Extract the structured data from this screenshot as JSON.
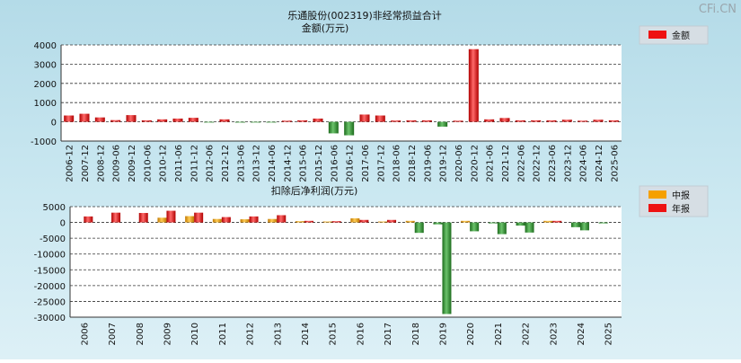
{
  "watermark": "CFi.CN",
  "chart_data": [
    {
      "type": "bar",
      "title": "乐通股份(002319)非经常损益合计",
      "subtitle": "金额(万元)",
      "legend": [
        {
          "name": "金额",
          "color": "#ee1111"
        }
      ],
      "legend_position": "top-right",
      "ylim": [
        -1000,
        4000
      ],
      "yticks": [
        -1000,
        0,
        1000,
        2000,
        3000,
        4000
      ],
      "grid": true,
      "categories": [
        "2006-12",
        "2007-12",
        "2008-12",
        "2009-06",
        "2009-12",
        "2010-06",
        "2010-12",
        "2011-06",
        "2011-12",
        "2012-06",
        "2012-12",
        "2013-06",
        "2013-12",
        "2014-06",
        "2014-12",
        "2015-06",
        "2015-12",
        "2016-06",
        "2016-12",
        "2017-06",
        "2017-12",
        "2018-06",
        "2018-12",
        "2019-06",
        "2019-12",
        "2020-06",
        "2020-12",
        "2021-06",
        "2021-12",
        "2022-06",
        "2022-12",
        "2023-06",
        "2023-12",
        "2024-06",
        "2024-12",
        "2025-06"
      ],
      "series": [
        {
          "name": "金额",
          "values": [
            330,
            420,
            230,
            90,
            350,
            80,
            130,
            170,
            210,
            -30,
            130,
            -40,
            -30,
            -20,
            60,
            80,
            170,
            -600,
            -700,
            380,
            330,
            70,
            80,
            80,
            -250,
            60,
            3780,
            130,
            200,
            80,
            80,
            80,
            110,
            60,
            110,
            80
          ]
        }
      ]
    },
    {
      "type": "bar",
      "title": "扣除后净利润(万元)",
      "legend": [
        {
          "name": "中报",
          "color": "#f5a000"
        },
        {
          "name": "年报",
          "color": "#ee1111"
        }
      ],
      "legend_position": "top-right",
      "ylim": [
        -30000,
        5000
      ],
      "yticks": [
        -30000,
        -25000,
        -20000,
        -15000,
        -10000,
        -5000,
        0,
        5000
      ],
      "grid": true,
      "categories": [
        "2006",
        "2007",
        "2008",
        "2009",
        "2010",
        "2011",
        "2012",
        "2013",
        "2014",
        "2015",
        "2016",
        "2017",
        "2018",
        "2019",
        "2020",
        "2021",
        "2022",
        "2023",
        "2024",
        "2025"
      ],
      "series": [
        {
          "name": "中报",
          "values": [
            null,
            null,
            null,
            1500,
            2000,
            1100,
            1000,
            1100,
            400,
            300,
            1300,
            300,
            500,
            -600,
            500,
            -300,
            -1000,
            500,
            -1500,
            -300
          ]
        },
        {
          "name": "年报",
          "values": [
            1900,
            3100,
            3000,
            3700,
            3100,
            1700,
            1900,
            2300,
            500,
            400,
            800,
            800,
            -3300,
            -29000,
            -2800,
            -3700,
            -3200,
            500,
            -2500,
            null
          ]
        }
      ]
    }
  ]
}
